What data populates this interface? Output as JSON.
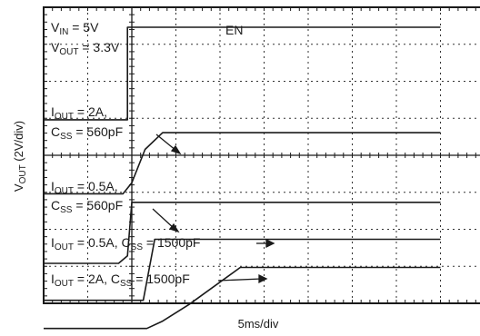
{
  "chart_data": {
    "type": "line",
    "title": "",
    "xlabel": "5ms/div",
    "ylabel": {
      "main": "V",
      "sub": "OUT",
      "rest": " (2V/div)"
    },
    "x_unit": "ms",
    "x_per_div": 5,
    "x_range_ms": [
      -10,
      35
    ],
    "y_per_div_V": 2,
    "grid": true,
    "annotations": {
      "conditions": [
        {
          "main": "V",
          "sub": "IN",
          "rest": " = 5V"
        },
        {
          "main": "V",
          "sub": "OUT",
          "rest": " = 3.3V"
        }
      ],
      "en": "EN",
      "t1": [
        {
          "main": "I",
          "sub": "OUT",
          "rest": " = 2A,"
        },
        {
          "main": "C",
          "sub": "SS",
          "rest": " = 560pF"
        }
      ],
      "t2": [
        {
          "main": "I",
          "sub": "OUT",
          "rest": " = 0.5A,"
        },
        {
          "main": "C",
          "sub": "SS",
          "rest": " = 560pF"
        }
      ],
      "t3": {
        "p1": "I",
        "s1": "OUT",
        "p2": " = 0.5A, C",
        "s2": "SS",
        "p3": " = 1500pF"
      },
      "t4": {
        "p1": "I",
        "s1": "OUT",
        "p2": " = 2A, C",
        "s2": "SS",
        "p3": " = 1500pF"
      }
    },
    "series": [
      {
        "points": [
          [
            -10,
            0
          ],
          [
            -0.5,
            0
          ],
          [
            -0.5,
            5
          ],
          [
            35,
            5
          ]
        ],
        "baseline_div": 3.04
      },
      {
        "points": [
          [
            -10,
            0
          ],
          [
            -1,
            0
          ],
          [
            0,
            0.6
          ],
          [
            1.5,
            2.4
          ],
          [
            3.5,
            3.3
          ],
          [
            35,
            3.3
          ]
        ],
        "baseline_div": 5.04
      },
      {
        "points": [
          [
            -10,
            0
          ],
          [
            -1.5,
            0
          ],
          [
            -0.5,
            0.4
          ],
          [
            0,
            3.3
          ],
          [
            35,
            3.3
          ]
        ],
        "baseline_div": 6.92
      },
      {
        "points": [
          [
            -10,
            0
          ],
          [
            1.3,
            0
          ],
          [
            2.6,
            3.3
          ],
          [
            35,
            3.3
          ]
        ],
        "baseline_div": 7.92
      },
      {
        "points": [
          [
            -10,
            0
          ],
          [
            1.7,
            0
          ],
          [
            3.5,
            0.4
          ],
          [
            6.5,
            1.3
          ],
          [
            12.3,
            3.3
          ],
          [
            35,
            3.3
          ]
        ],
        "baseline_div": 8.68
      }
    ]
  }
}
